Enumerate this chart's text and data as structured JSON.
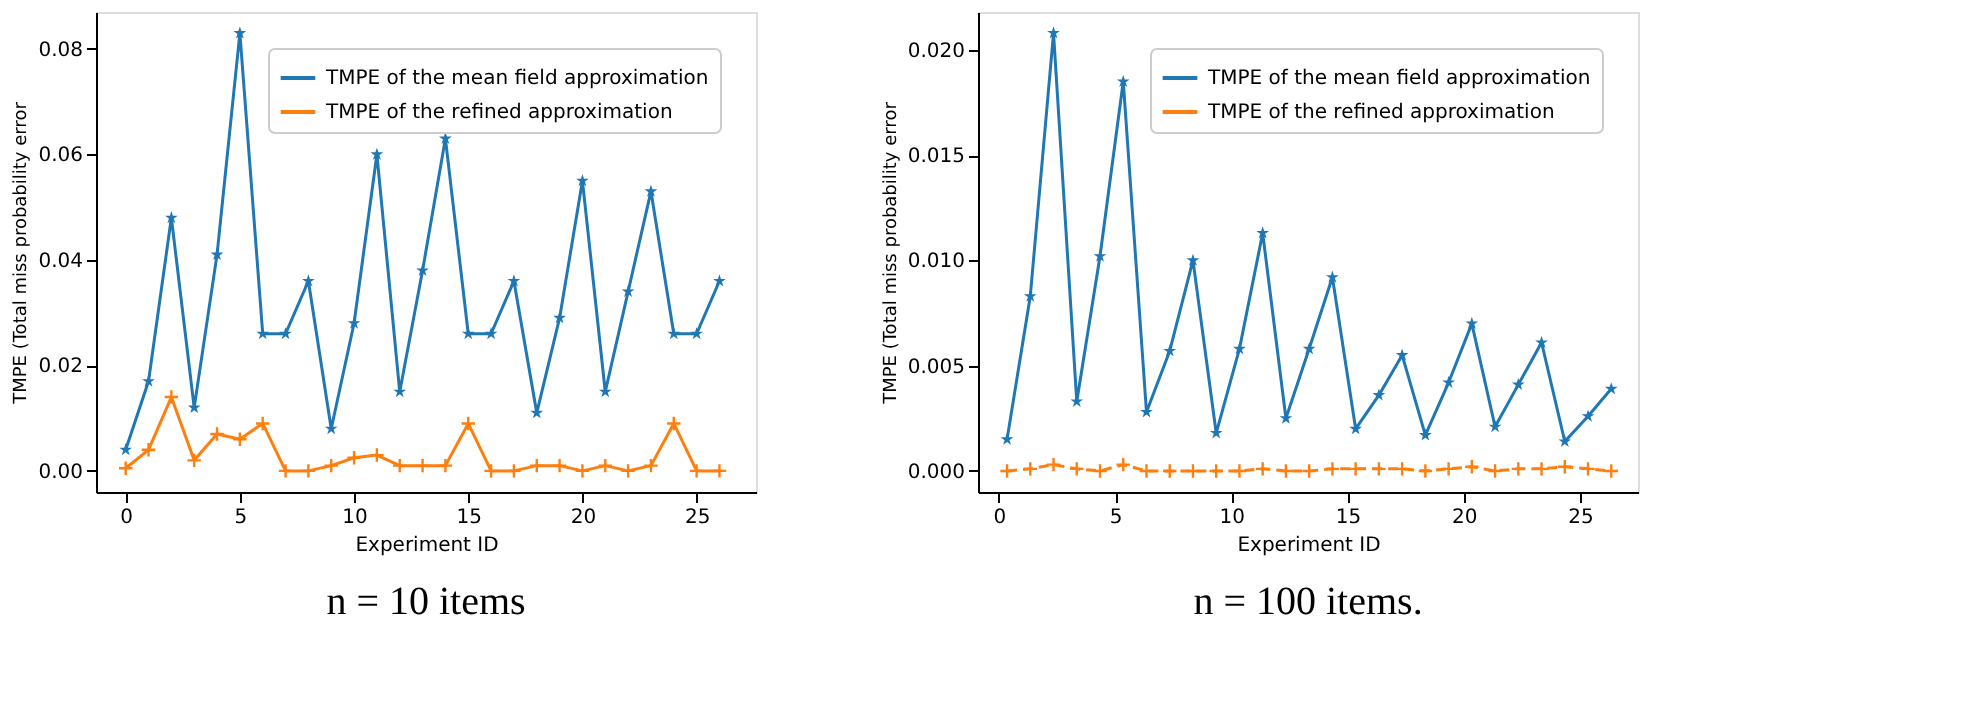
{
  "chart_data": [
    {
      "type": "line",
      "title": "n = 10 items",
      "xlabel": "Experiment ID",
      "ylabel": "TMPE (Total miss probability error",
      "x": [
        0,
        1,
        2,
        3,
        4,
        5,
        6,
        7,
        8,
        9,
        10,
        11,
        12,
        13,
        14,
        15,
        16,
        17,
        18,
        19,
        20,
        21,
        22,
        23,
        24,
        25,
        26
      ],
      "xlim": [
        -1.3,
        27.6
      ],
      "xticks": [
        0,
        5,
        10,
        15,
        20,
        25
      ],
      "ylim": [
        -0.004,
        0.087
      ],
      "yticks": [
        {
          "value": 0,
          "label": "0.00"
        },
        {
          "value": 0.02,
          "label": "0.02"
        },
        {
          "value": 0.04,
          "label": "0.04"
        },
        {
          "value": 0.06,
          "label": "0.06"
        },
        {
          "value": 0.08,
          "label": "0.08"
        }
      ],
      "grid": false,
      "legend": "top right",
      "series": [
        {
          "name": "TMPE of the mean field approximation",
          "color": "#1f77b4",
          "marker": "star",
          "line_style": "solid",
          "values": [
            0.004,
            0.017,
            0.048,
            0.012,
            0.041,
            0.083,
            0.026,
            0.026,
            0.036,
            0.008,
            0.028,
            0.06,
            0.015,
            0.038,
            0.063,
            0.026,
            0.026,
            0.036,
            0.011,
            0.029,
            0.055,
            0.015,
            0.034,
            0.053,
            0.026,
            0.026,
            0.036
          ]
        },
        {
          "name": "TMPE of the refined approximation",
          "color": "#ff7f0e",
          "marker": "cross",
          "line_style": "solid",
          "values": [
            0.0005,
            0.004,
            0.014,
            0.002,
            0.007,
            0.006,
            0.009,
            0.0,
            0.0,
            0.001,
            0.0025,
            0.003,
            0.001,
            0.001,
            0.001,
            0.009,
            0.0,
            0.0,
            0.001,
            0.001,
            0.0,
            0.001,
            0.0,
            0.001,
            0.009,
            0.0,
            0.0
          ]
        }
      ]
    },
    {
      "type": "line",
      "title": "n = 100 items.",
      "xlabel": "Experiment ID",
      "ylabel": "TMPE (Total miss probability error",
      "x": [
        0.35,
        1.35,
        2.35,
        3.35,
        4.35,
        5.35,
        6.35,
        7.35,
        8.35,
        9.35,
        10.35,
        11.35,
        12.35,
        13.35,
        14.35,
        15.35,
        16.35,
        17.35,
        18.35,
        19.35,
        20.35,
        21.35,
        22.35,
        23.35,
        24.35,
        25.35,
        26.35
      ],
      "xlim": [
        -0.9,
        27.5
      ],
      "xticks": [
        0,
        5,
        10,
        15,
        20,
        25
      ],
      "ylim": [
        -0.001,
        0.0218
      ],
      "yticks": [
        {
          "value": 0,
          "label": "0.000"
        },
        {
          "value": 0.005,
          "label": "0.005"
        },
        {
          "value": 0.01,
          "label": "0.010"
        },
        {
          "value": 0.015,
          "label": "0.015"
        },
        {
          "value": 0.02,
          "label": "0.020"
        }
      ],
      "grid": false,
      "legend": "top right",
      "series": [
        {
          "name": "TMPE of the mean field approximation",
          "color": "#1f77b4",
          "marker": "star",
          "line_style": "solid",
          "values": [
            0.0015,
            0.0083,
            0.0208,
            0.0033,
            0.0102,
            0.0185,
            0.0028,
            0.0057,
            0.01,
            0.0018,
            0.0058,
            0.0113,
            0.0025,
            0.0058,
            0.0092,
            0.002,
            0.0036,
            0.0055,
            0.0017,
            0.0042,
            0.007,
            0.0021,
            0.0041,
            0.0061,
            0.0014,
            0.0026,
            0.0039
          ]
        },
        {
          "name": "TMPE of the refined approximation",
          "color": "#ff7f0e",
          "marker": "cross",
          "line_style": "dashed",
          "values": [
            0.0,
            0.0001,
            0.0003,
            0.0001,
            0.0,
            0.0003,
            0.0,
            0.0,
            0.0,
            0.0,
            0.0,
            0.0001,
            0.0,
            0.0,
            0.0001,
            0.0001,
            0.0001,
            0.0001,
            0.0,
            0.0001,
            0.0002,
            0.0,
            0.0001,
            0.0001,
            0.0002,
            0.0001,
            0.0
          ]
        }
      ]
    }
  ]
}
